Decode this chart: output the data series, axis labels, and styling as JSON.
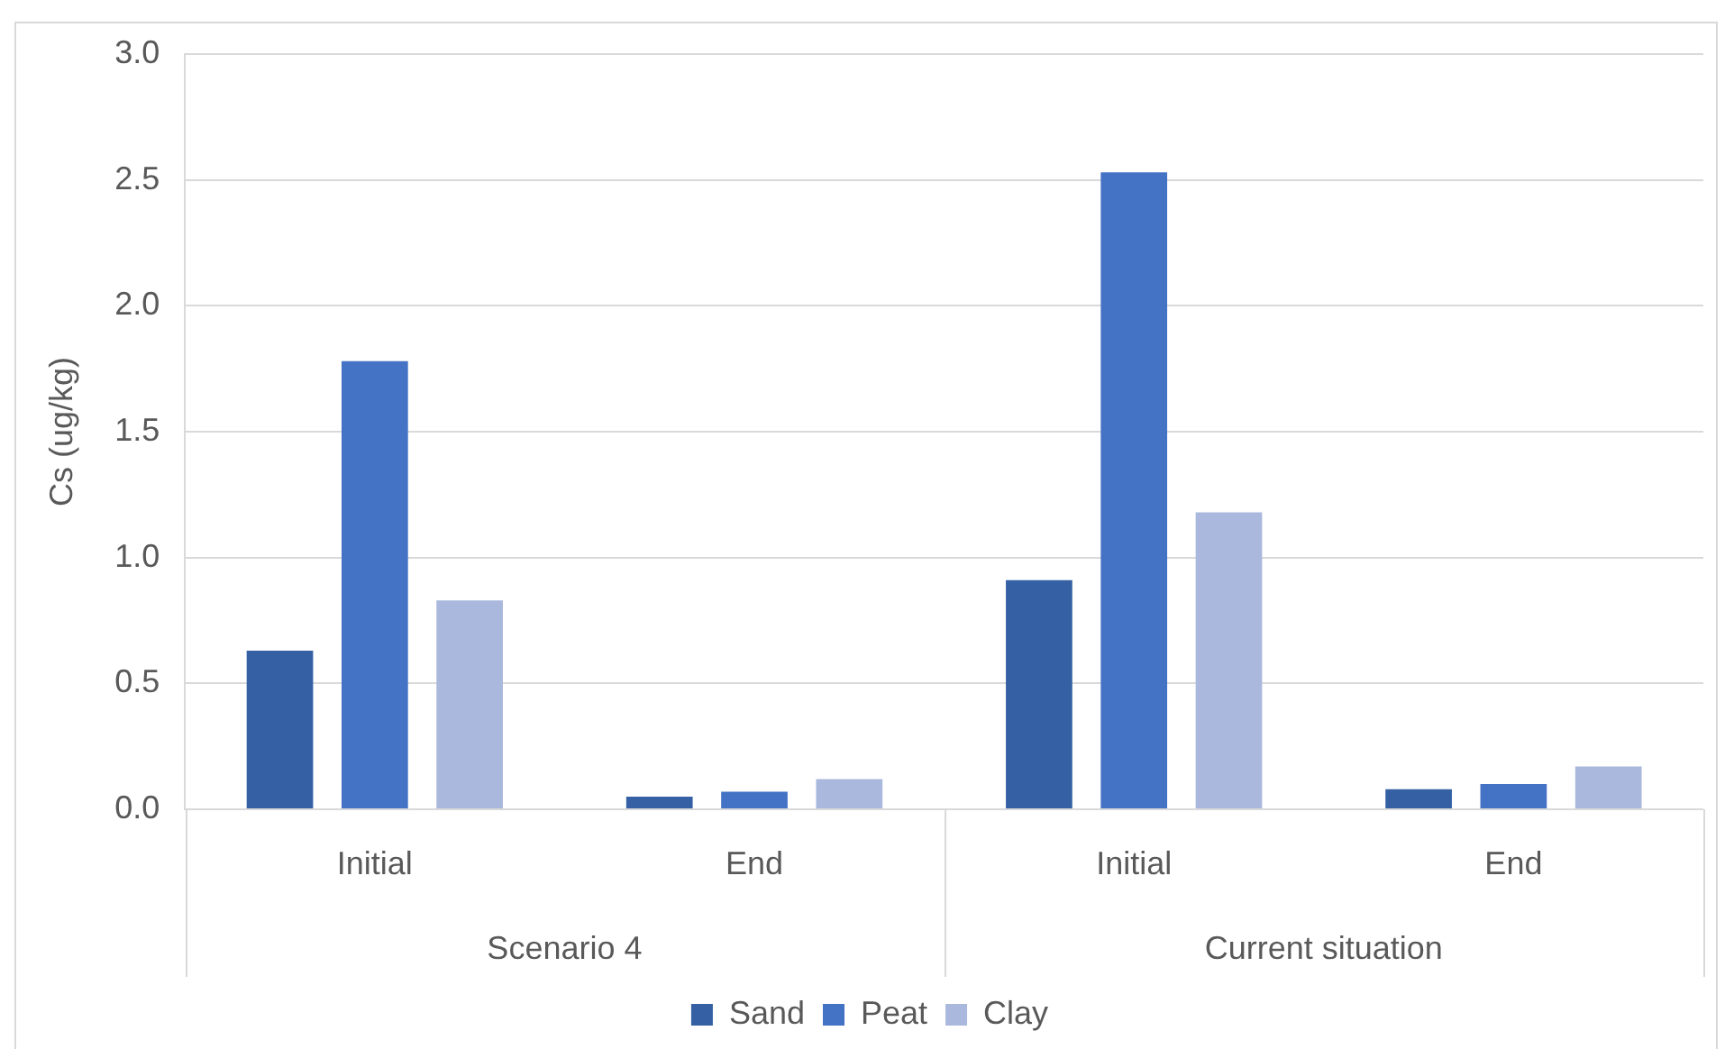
{
  "chart_data": {
    "type": "bar",
    "categories": [
      "Initial",
      "End",
      "Initial",
      "End"
    ],
    "series": [
      {
        "name": "Sand",
        "color": "#3560a4",
        "values": [
          0.63,
          0.05,
          0.91,
          0.08
        ]
      },
      {
        "name": "Peat",
        "color": "#4472c4",
        "values": [
          1.78,
          0.07,
          2.53,
          0.1
        ]
      },
      {
        "name": "Clay",
        "color": "#a9b8dc",
        "values": [
          0.83,
          0.12,
          1.18,
          0.17
        ]
      }
    ],
    "ylabel": "Cs (ug/kg)",
    "ylim": [
      0,
      3
    ],
    "yticks": [
      {
        "value": 0,
        "label": "0.0"
      },
      {
        "value": 0.5,
        "label": "0.5"
      },
      {
        "value": 1,
        "label": "1.0"
      },
      {
        "value": 1.5,
        "label": "1.5"
      },
      {
        "value": 2,
        "label": "2.0"
      },
      {
        "value": 2.5,
        "label": "2.5"
      },
      {
        "value": 3,
        "label": "3.0"
      }
    ],
    "annotations": [
      "Scenario 4",
      "Current situation"
    ],
    "grid": "y",
    "legend": "bottom"
  }
}
